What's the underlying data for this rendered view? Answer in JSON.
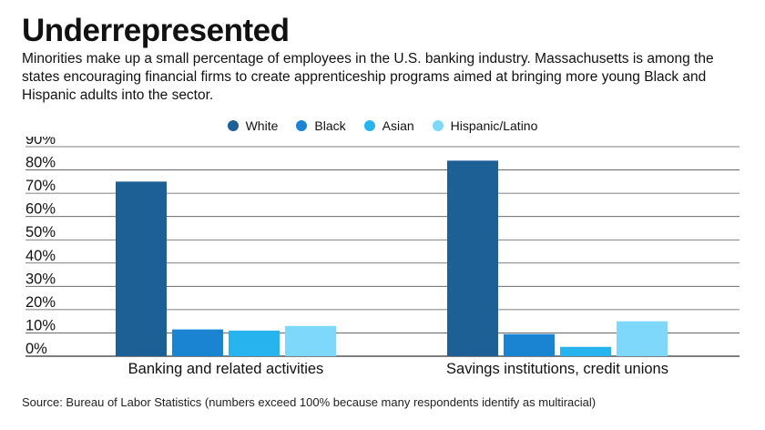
{
  "header": {
    "title": "Underrepresented",
    "subtitle": "Minorities make up a small percentage of employees in the U.S. banking industry. Massachusetts is among the states encouraging financial firms to create apprenticeship programs aimed at bringing more young Black and Hispanic adults into the sector."
  },
  "footer": {
    "source": "Source: Bureau of Labor Statistics (numbers exceed 100% because many respondents identify as multiracial)"
  },
  "chart_data": {
    "type": "bar",
    "categories": [
      "Banking and related activities",
      "Savings institutions, credit unions"
    ],
    "series": [
      {
        "name": "White",
        "color": "#1d6096",
        "values": [
          75,
          84
        ]
      },
      {
        "name": "Black",
        "color": "#1b84d2",
        "values": [
          11.5,
          9.5
        ]
      },
      {
        "name": "Asian",
        "color": "#27b4ee",
        "values": [
          11,
          4
        ]
      },
      {
        "name": "Hispanic/Latino",
        "color": "#7dd8fb",
        "values": [
          13,
          15
        ]
      }
    ],
    "y_ticks": [
      "0%",
      "10%",
      "20%",
      "30%",
      "40%",
      "50%",
      "60%",
      "70%",
      "80%",
      "90%"
    ],
    "ylim": [
      0,
      90
    ],
    "grid": true,
    "legend": "top-center"
  }
}
